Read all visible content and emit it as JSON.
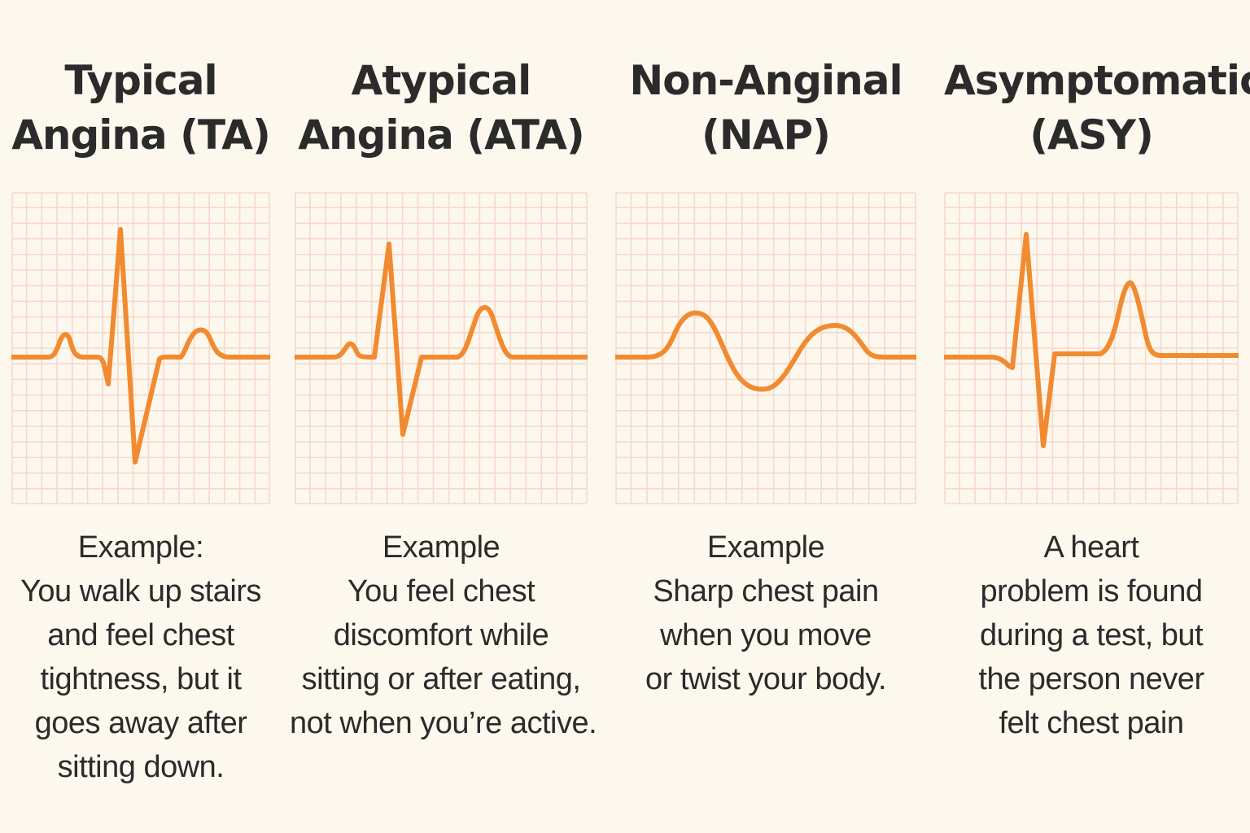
{
  "background": "#fdf8ee",
  "grid_color": "#f6d8cc",
  "trace_color": "#f28a30",
  "panels": [
    {
      "id": "ta",
      "title_lines": [
        "Typical",
        "Angina (TA)"
      ],
      "description_lines": [
        "Example:",
        "You walk up stairs",
        "and feel chest",
        "tightness, but it",
        "goes away after",
        "sitting down."
      ],
      "waveform": "typical-angina-ecg"
    },
    {
      "id": "ata",
      "title_lines": [
        "Atypical",
        "Angina (ATA)"
      ],
      "description_lines": [
        "Example",
        "You feel chest",
        "discomfort while",
        "sitting or after eating,",
        "not when you’re active."
      ],
      "waveform": "atypical-angina-ecg"
    },
    {
      "id": "nap",
      "title_lines": [
        "Non-Anginal",
        "(NAP)"
      ],
      "description_lines": [
        "Example",
        "Sharp chest pain",
        "when you move",
        "or twist your body."
      ],
      "waveform": "non-anginal-ecg"
    },
    {
      "id": "asy",
      "title_lines": [
        "Asymptomatic",
        "(ASY)"
      ],
      "description_lines": [
        "A heart",
        "problem is found",
        "during a test, but",
        "the person never",
        "felt chest pain"
      ],
      "waveform": "asymptomatic-ecg"
    }
  ]
}
